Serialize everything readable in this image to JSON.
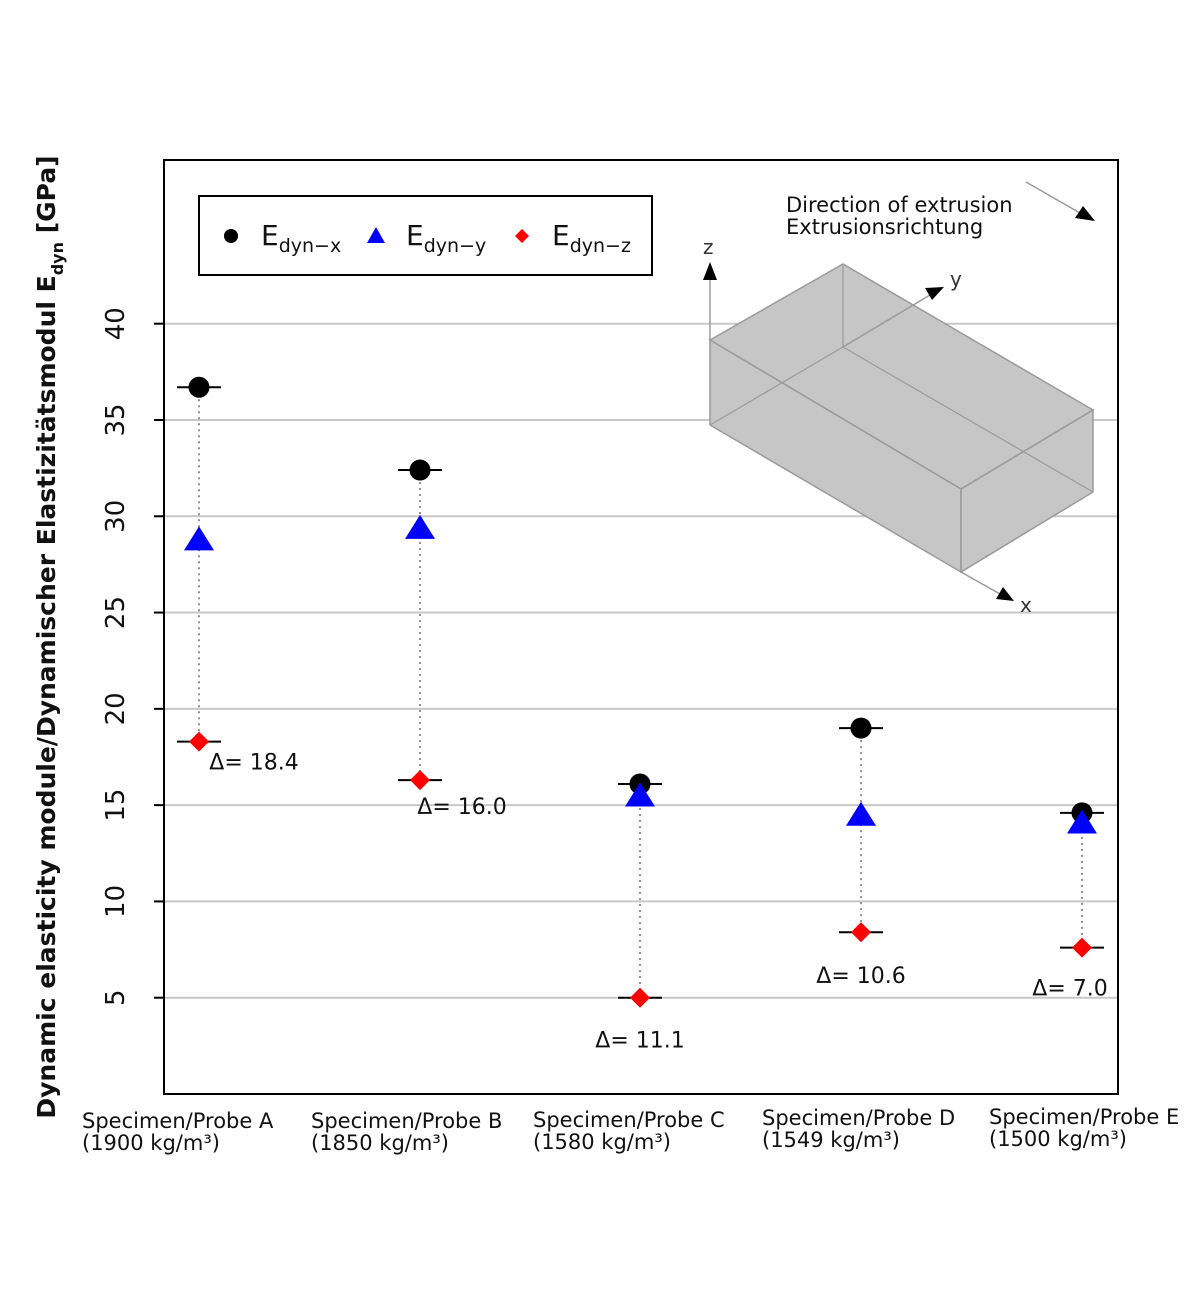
{
  "chart_data": {
    "type": "scatter",
    "ylabel": {
      "main": "Dynamic elasticity module/Dynamischer Elastizitätsmodul E",
      "sub": "dyn",
      "unit": " [GPa]"
    },
    "yticks": [
      5,
      10,
      15,
      20,
      25,
      30,
      35,
      40
    ],
    "ylim": [
      0,
      48.5
    ],
    "grid": true,
    "categories": [
      {
        "name": "Specimen/Probe A",
        "density": "(1900 kg/m³)"
      },
      {
        "name": "Specimen/Probe B",
        "density": "(1850 kg/m³)"
      },
      {
        "name": "Specimen/Probe C",
        "density": "(1580 kg/m³)"
      },
      {
        "name": "Specimen/Probe D",
        "density": "(1549 kg/m³)"
      },
      {
        "name": "Specimen/Probe E",
        "density": "(1500 kg/m³)"
      }
    ],
    "series": [
      {
        "key": "x",
        "name": "E",
        "sub": "dyn−x",
        "marker": "circle",
        "color": "#000000",
        "values": [
          36.7,
          32.4,
          16.1,
          19.0,
          14.6
        ]
      },
      {
        "key": "y",
        "name": "E",
        "sub": "dyn−y",
        "marker": "triangle",
        "color": "#0000ff",
        "values": [
          28.8,
          29.4,
          15.5,
          14.5,
          14.1
        ]
      },
      {
        "key": "z",
        "name": "E",
        "sub": "dyn−z",
        "marker": "diamond",
        "color": "#ff0000",
        "values": [
          18.3,
          16.3,
          5.0,
          8.4,
          7.6
        ]
      }
    ],
    "deltas": [
      "Δ= 18.4",
      "Δ= 16.0",
      "Δ= 11.1",
      "Δ= 10.6",
      "Δ= 7.0"
    ],
    "legend_position": "top-left",
    "inset": {
      "title_en": "Direction of extrusion",
      "title_de": "Extrusionsrichtung",
      "axes": [
        "x",
        "y",
        "z"
      ]
    }
  }
}
